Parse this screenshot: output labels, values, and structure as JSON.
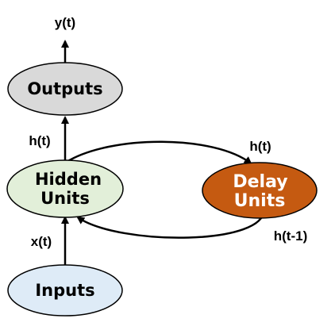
{
  "nodes": {
    "outputs": {
      "label": "Outputs",
      "fill": "#d9d9d9"
    },
    "hidden": {
      "line1": "Hidden",
      "line2": "Units",
      "fill": "#e2efd9"
    },
    "delay": {
      "line1": "Delay",
      "line2": "Units",
      "fill": "#c55a11",
      "text_color": "#ffffff"
    },
    "inputs": {
      "label": "Inputs",
      "fill": "#deebf7"
    }
  },
  "labels": {
    "output_signal": "y(t)",
    "hidden_to_output": "h(t)",
    "hidden_to_delay": "h(t)",
    "delay_to_hidden": "h(t-1)",
    "input_signal": "x(t)"
  },
  "colors": {
    "stroke": "#000000"
  }
}
